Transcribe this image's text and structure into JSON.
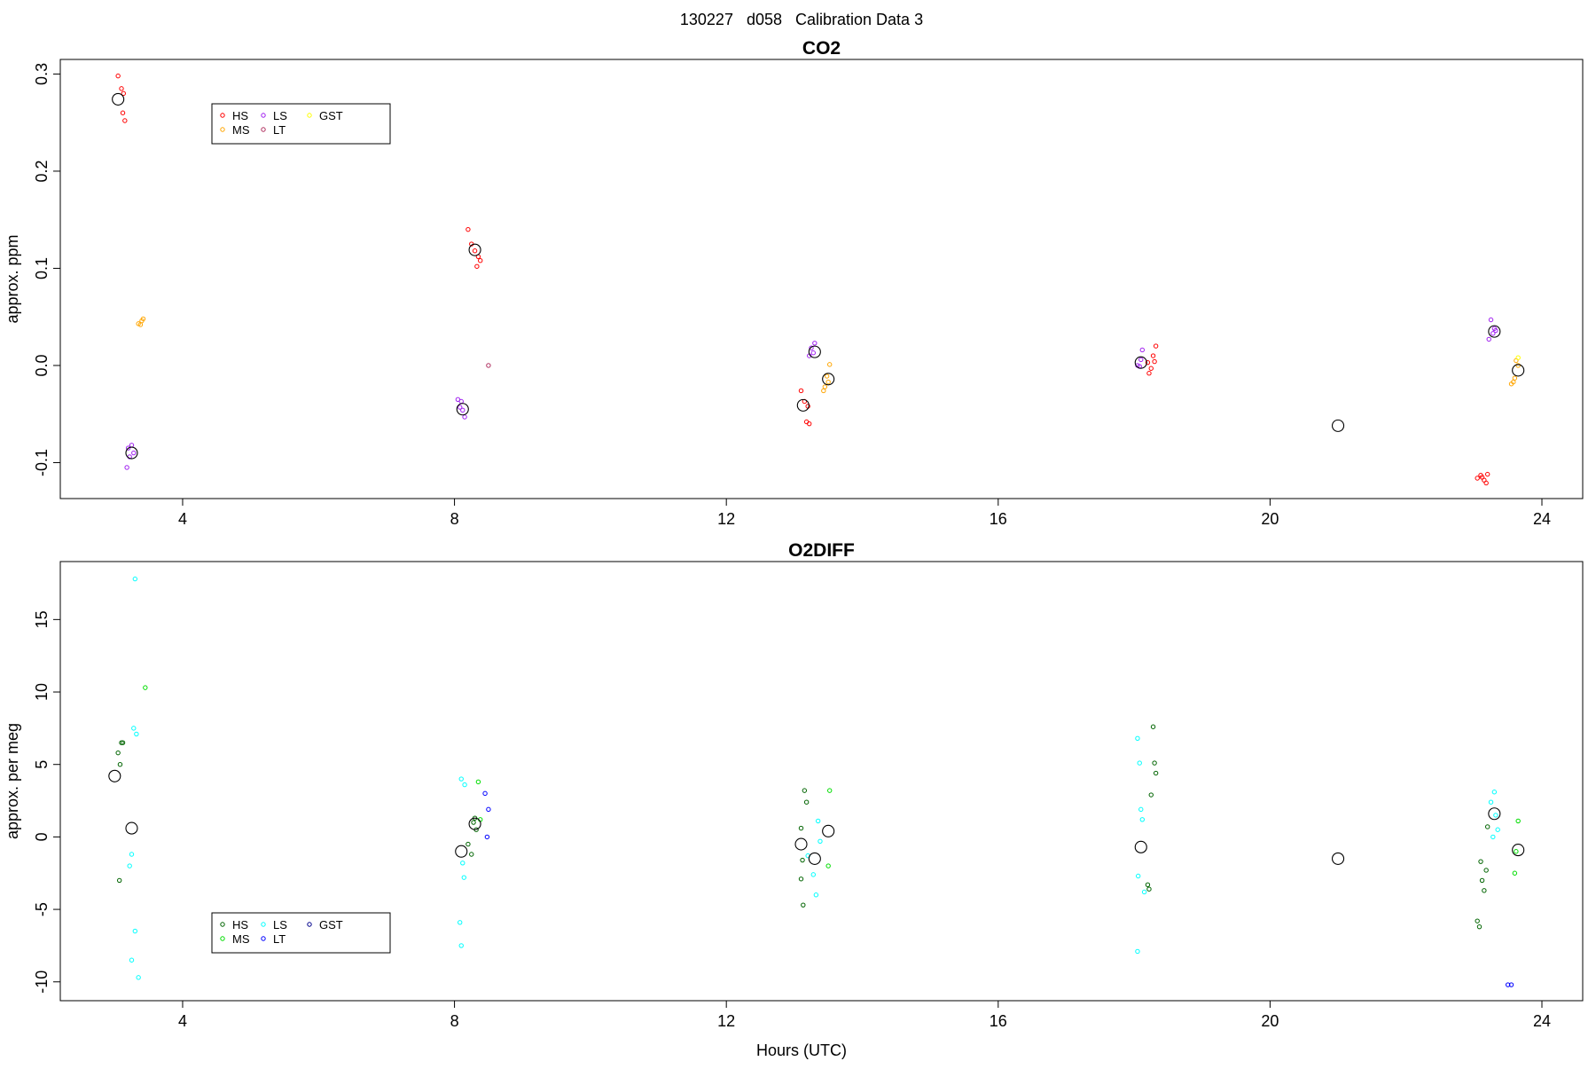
{
  "figure": {
    "title": "130227   d058   Calibration Data 3",
    "xlabel": "Hours (UTC)"
  },
  "chart_data": [
    {
      "type": "scatter",
      "title": "CO2",
      "xlabel": "",
      "ylabel": "approx. ppm",
      "xlim": [
        2.2,
        24.6
      ],
      "ylim": [
        -0.137,
        0.315
      ],
      "xticks": [
        4,
        8,
        12,
        16,
        20,
        24
      ],
      "yticks": [
        -0.1,
        0.0,
        0.1,
        0.2,
        0.3
      ],
      "ytick_labels": [
        "-0.1",
        "0.0",
        "0.1",
        "0.2",
        "0.3"
      ],
      "grid": false,
      "legend_position": "top-left",
      "series": [
        {
          "name": "HS",
          "color": "#ff0000",
          "points": [
            [
              3.05,
              0.298
            ],
            [
              3.1,
              0.285
            ],
            [
              3.13,
              0.28
            ],
            [
              3.12,
              0.26
            ],
            [
              3.15,
              0.252
            ],
            [
              8.2,
              0.14
            ],
            [
              8.25,
              0.125
            ],
            [
              8.3,
              0.118
            ],
            [
              8.35,
              0.112
            ],
            [
              8.38,
              0.108
            ],
            [
              8.33,
              0.102
            ],
            [
              13.1,
              -0.026
            ],
            [
              13.15,
              -0.037
            ],
            [
              13.2,
              -0.042
            ],
            [
              13.18,
              -0.058
            ],
            [
              13.22,
              -0.06
            ],
            [
              18.2,
              0.003
            ],
            [
              18.25,
              -0.003
            ],
            [
              18.28,
              0.01
            ],
            [
              18.3,
              0.004
            ],
            [
              18.32,
              0.02
            ],
            [
              18.22,
              -0.008
            ],
            [
              23.05,
              -0.116
            ],
            [
              23.1,
              -0.113
            ],
            [
              23.15,
              -0.118
            ],
            [
              23.2,
              -0.112
            ],
            [
              23.18,
              -0.121
            ],
            [
              23.12,
              -0.115
            ]
          ]
        },
        {
          "name": "MS",
          "color": "#ffa500",
          "points": [
            [
              3.35,
              0.043
            ],
            [
              3.4,
              0.046
            ],
            [
              3.38,
              0.042
            ],
            [
              3.42,
              0.048
            ],
            [
              13.45,
              -0.022
            ],
            [
              13.5,
              -0.017
            ],
            [
              13.52,
              0.001
            ],
            [
              13.48,
              -0.011
            ],
            [
              13.43,
              -0.026
            ],
            [
              23.55,
              -0.019
            ],
            [
              23.6,
              -0.013
            ],
            [
              23.62,
              0.005
            ],
            [
              23.65,
              0.0
            ],
            [
              23.58,
              -0.017
            ]
          ]
        },
        {
          "name": "LS",
          "color": "#a020f0",
          "points": [
            [
              3.2,
              -0.085
            ],
            [
              3.25,
              -0.082
            ],
            [
              3.28,
              -0.09
            ],
            [
              3.22,
              -0.094
            ],
            [
              3.18,
              -0.105
            ],
            [
              8.05,
              -0.035
            ],
            [
              8.1,
              -0.037
            ],
            [
              8.12,
              -0.046
            ],
            [
              8.15,
              -0.053
            ],
            [
              8.08,
              -0.043
            ],
            [
              13.25,
              0.018
            ],
            [
              13.3,
              0.023
            ],
            [
              13.28,
              0.013
            ],
            [
              13.22,
              0.01
            ],
            [
              18.05,
              0.0
            ],
            [
              18.1,
              0.006
            ],
            [
              18.12,
              0.016
            ],
            [
              18.08,
              -0.001
            ],
            [
              23.25,
              0.047
            ],
            [
              23.3,
              0.038
            ],
            [
              23.28,
              0.033
            ],
            [
              23.22,
              0.027
            ],
            [
              23.32,
              0.036
            ]
          ]
        },
        {
          "name": "LT",
          "color": "#b03060",
          "points": [
            [
              8.5,
              0.0
            ]
          ]
        },
        {
          "name": "GST",
          "color": "#ffff00",
          "points": [
            [
              23.65,
              0.008
            ]
          ]
        }
      ],
      "means": [
        [
          3.05,
          0.274
        ],
        [
          3.25,
          -0.09
        ],
        [
          8.3,
          0.119
        ],
        [
          8.12,
          -0.045
        ],
        [
          13.13,
          -0.041
        ],
        [
          13.3,
          0.014
        ],
        [
          13.5,
          -0.014
        ],
        [
          18.1,
          0.003
        ],
        [
          21.0,
          -0.062
        ],
        [
          23.3,
          0.035
        ],
        [
          23.65,
          -0.005
        ]
      ]
    },
    {
      "type": "scatter",
      "title": "O2DIFF",
      "xlabel": "Hours (UTC)",
      "ylabel": "approx. per meg",
      "xlim": [
        2.2,
        24.6
      ],
      "ylim": [
        -11.3,
        19.0
      ],
      "xticks": [
        4,
        8,
        12,
        16,
        20,
        24
      ],
      "yticks": [
        -10,
        -5,
        0,
        5,
        10,
        15
      ],
      "ytick_labels": [
        "-10",
        "-5",
        "0",
        "5",
        "10",
        "15"
      ],
      "grid": false,
      "legend_position": "bottom-left",
      "series": [
        {
          "name": "HS",
          "color": "#006400",
          "points": [
            [
              3.05,
              5.8
            ],
            [
              3.08,
              5.0
            ],
            [
              3.1,
              6.5
            ],
            [
              3.12,
              6.5
            ],
            [
              3.07,
              -3.0
            ],
            [
              8.2,
              -0.5
            ],
            [
              8.25,
              -1.2
            ],
            [
              8.28,
              1.0
            ],
            [
              8.32,
              0.5
            ],
            [
              8.3,
              1.3
            ],
            [
              13.1,
              0.6
            ],
            [
              13.15,
              3.2
            ],
            [
              13.18,
              2.4
            ],
            [
              13.12,
              -1.6
            ],
            [
              13.1,
              -2.9
            ],
            [
              13.13,
              -4.7
            ],
            [
              18.2,
              -3.3
            ],
            [
              18.22,
              -3.6
            ],
            [
              18.25,
              2.9
            ],
            [
              18.28,
              7.6
            ],
            [
              18.3,
              5.1
            ],
            [
              18.32,
              4.4
            ],
            [
              23.05,
              -5.8
            ],
            [
              23.08,
              -6.2
            ],
            [
              23.1,
              -1.7
            ],
            [
              23.12,
              -3.0
            ],
            [
              23.15,
              -3.7
            ],
            [
              23.2,
              0.7
            ],
            [
              23.18,
              -2.3
            ]
          ]
        },
        {
          "name": "MS",
          "color": "#00dd00",
          "points": [
            [
              3.45,
              10.3
            ],
            [
              8.35,
              3.8
            ],
            [
              8.38,
              1.2
            ],
            [
              13.5,
              -2.0
            ],
            [
              13.52,
              3.2
            ],
            [
              23.6,
              -2.5
            ],
            [
              23.65,
              1.1
            ],
            [
              23.62,
              -1.0
            ]
          ]
        },
        {
          "name": "LS",
          "color": "#00ffff",
          "points": [
            [
              3.3,
              17.8
            ],
            [
              3.28,
              7.5
            ],
            [
              3.32,
              7.1
            ],
            [
              3.25,
              -1.2
            ],
            [
              3.22,
              -2.0
            ],
            [
              3.3,
              -6.5
            ],
            [
              3.25,
              -8.5
            ],
            [
              3.35,
              -9.7
            ],
            [
              8.1,
              4.0
            ],
            [
              8.15,
              3.6
            ],
            [
              8.12,
              -1.8
            ],
            [
              8.14,
              -2.8
            ],
            [
              8.08,
              -5.9
            ],
            [
              8.1,
              -7.5
            ],
            [
              13.2,
              -1.3
            ],
            [
              13.28,
              -2.6
            ],
            [
              13.32,
              -4.0
            ],
            [
              13.35,
              1.1
            ],
            [
              13.38,
              -0.3
            ],
            [
              18.05,
              6.8
            ],
            [
              18.08,
              5.1
            ],
            [
              18.1,
              1.9
            ],
            [
              18.12,
              1.2
            ],
            [
              18.06,
              -2.7
            ],
            [
              18.15,
              -3.8
            ],
            [
              18.05,
              -7.9
            ],
            [
              23.25,
              2.4
            ],
            [
              23.3,
              3.1
            ],
            [
              23.32,
              1.5
            ],
            [
              23.28,
              0.0
            ],
            [
              23.35,
              0.5
            ]
          ]
        },
        {
          "name": "LT",
          "color": "#0000ff",
          "points": [
            [
              8.45,
              3.0
            ],
            [
              8.5,
              1.9
            ],
            [
              8.48,
              0.0
            ],
            [
              23.5,
              -10.2
            ],
            [
              23.55,
              -10.2
            ]
          ]
        },
        {
          "name": "GST",
          "color": "#00008b",
          "points": []
        }
      ],
      "means": [
        [
          3.0,
          4.2
        ],
        [
          3.25,
          0.6
        ],
        [
          8.1,
          -1.0
        ],
        [
          8.3,
          0.9
        ],
        [
          13.1,
          -0.5
        ],
        [
          13.3,
          -1.5
        ],
        [
          13.5,
          0.4
        ],
        [
          18.1,
          -0.7
        ],
        [
          21.0,
          -1.5
        ],
        [
          23.3,
          1.6
        ],
        [
          23.65,
          -0.9
        ]
      ]
    }
  ]
}
